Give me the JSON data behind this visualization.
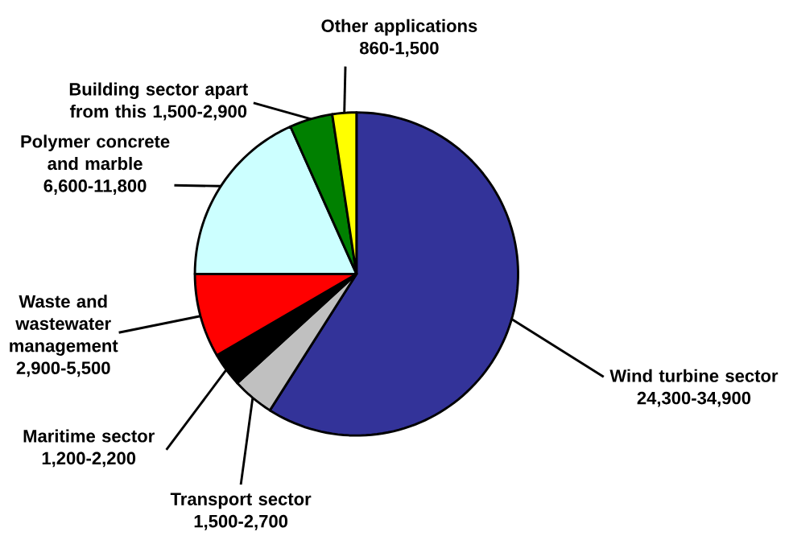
{
  "chart_data": {
    "type": "pie",
    "categories": [
      "Wind turbine sector",
      "Transport sector",
      "Maritime sector",
      "Waste and wastewater management",
      "Polymer concrete and marble",
      "Building sector apart from this",
      "Other applications"
    ],
    "values": [
      59.0,
      4.2,
      3.4,
      8.4,
      18.3,
      4.3,
      2.4
    ],
    "value_labels": [
      "24,300-34,900",
      "1,500-2,700",
      "1,200-2,200",
      "2,900-5,500",
      "6,600-11,800",
      "1,500-2,900",
      "860-1,500"
    ],
    "colors": [
      "#333399",
      "#c0c0c0",
      "#000000",
      "#ff0000",
      "#ccffff",
      "#008000",
      "#ffff00"
    ]
  }
}
